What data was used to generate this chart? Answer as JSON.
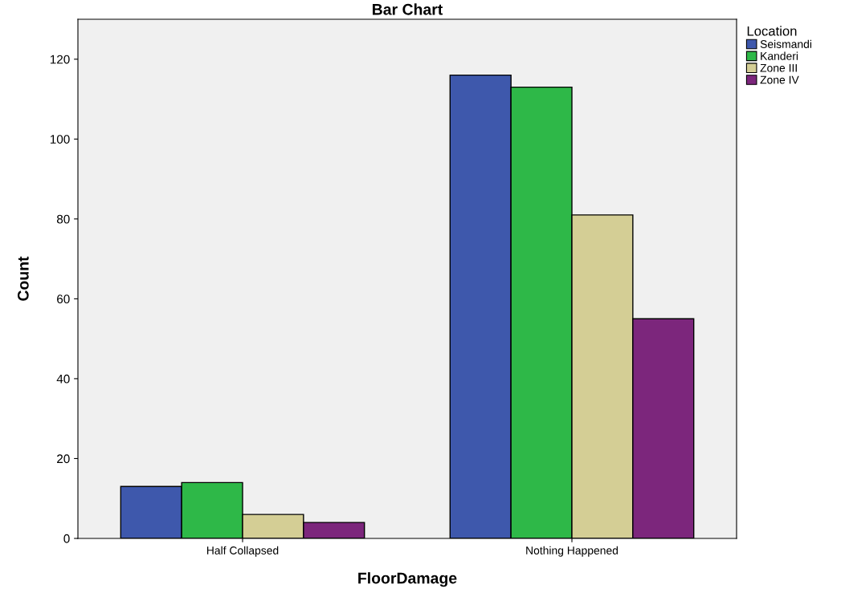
{
  "chart_data": {
    "type": "bar",
    "title": "Bar Chart",
    "xlabel": "FloorDamage",
    "ylabel": "Count",
    "legend_title": "Location",
    "categories": [
      "Half Collapsed",
      "Nothing Happened"
    ],
    "series": [
      {
        "name": "Seismandi",
        "color": "#3e58ac",
        "values": [
          13,
          116
        ]
      },
      {
        "name": "Kanderi",
        "color": "#2eb848",
        "values": [
          14,
          113
        ]
      },
      {
        "name": "Zone III",
        "color": "#d4ce95",
        "values": [
          6,
          81
        ]
      },
      {
        "name": "Zone IV",
        "color": "#7c267c",
        "values": [
          4,
          55
        ]
      }
    ],
    "ylim": [
      0,
      130
    ],
    "yticks": [
      0,
      20,
      40,
      60,
      80,
      100,
      120
    ],
    "grid": false,
    "legend": "top right"
  }
}
